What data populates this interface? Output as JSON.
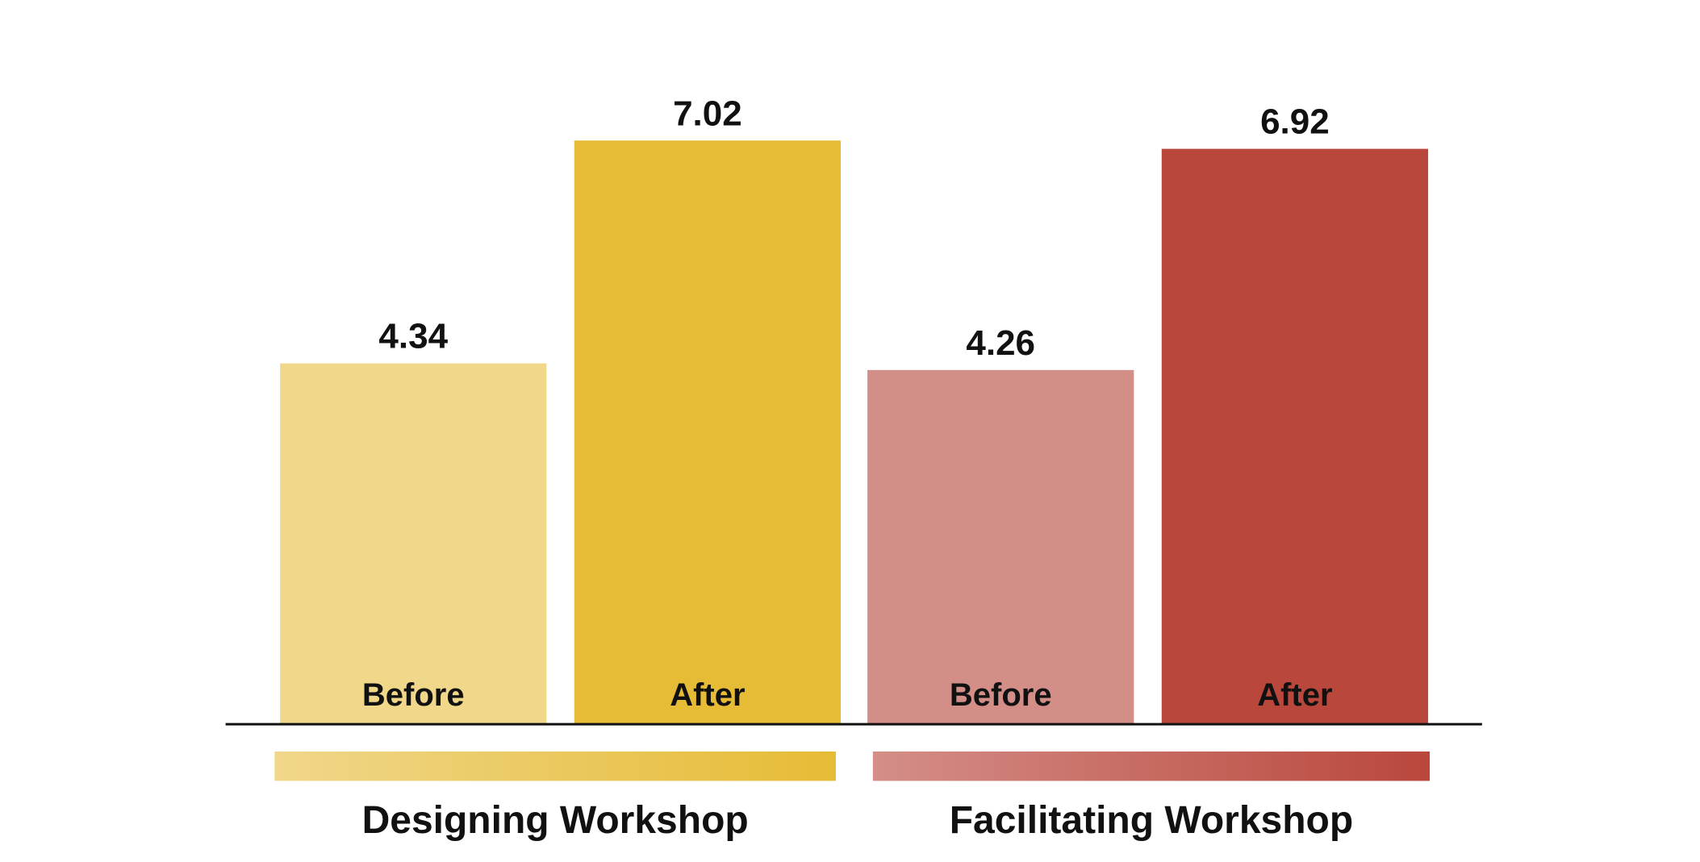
{
  "chart_data": {
    "type": "grouped-bar",
    "categories": [
      "Before",
      "After"
    ],
    "series": [
      {
        "name": "Designing Workshop",
        "colors": [
          "#f0d78a",
          "#e6bb35"
        ],
        "values": [
          4.34,
          7.02
        ]
      },
      {
        "name": "Facilitating Workshop",
        "colors": [
          "#d48e88",
          "#b9473c"
        ],
        "values": [
          4.26,
          6.92
        ]
      }
    ],
    "ylim": [
      0,
      8
    ]
  }
}
